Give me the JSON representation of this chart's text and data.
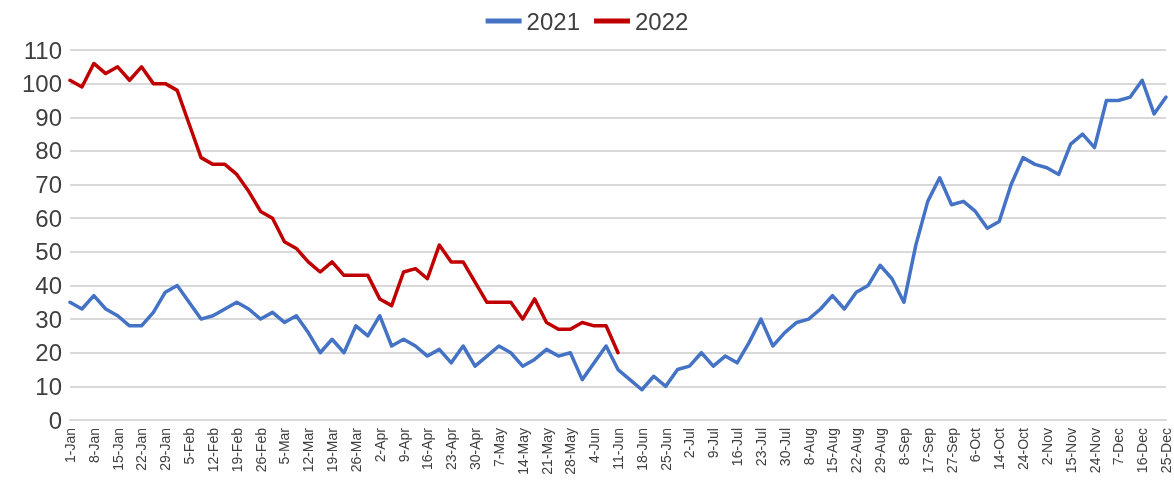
{
  "chart_data": {
    "type": "line",
    "categories": [
      "1-Jan",
      null,
      "8-Jan",
      null,
      "15-Jan",
      null,
      "22-Jan",
      null,
      "29-Jan",
      null,
      "5-Feb",
      null,
      "12-Feb",
      null,
      "19-Feb",
      null,
      "26-Feb",
      null,
      "5-Mar",
      null,
      "12-Mar",
      null,
      "19-Mar",
      null,
      "26-Mar",
      null,
      "2-Apr",
      null,
      "9-Apr",
      null,
      "16-Apr",
      null,
      "23-Apr",
      null,
      "30-Apr",
      null,
      "7-May",
      null,
      "14-May",
      null,
      "21-May",
      null,
      "28-May",
      null,
      "4-Jun",
      null,
      "11-Jun",
      null,
      "18-Jun",
      null,
      "25-Jun",
      null,
      "2-Jul",
      null,
      "9-Jul",
      null,
      "16-Jul",
      null,
      "23-Jul",
      null,
      "30-Jul",
      null,
      "8-Aug",
      null,
      "15-Aug",
      null,
      "22-Aug",
      null,
      "29-Aug",
      null,
      "8-Sep",
      null,
      "17-Sep",
      null,
      "27-Sep",
      null,
      "6-Oct",
      null,
      "14-Oct",
      null,
      "24-Oct",
      null,
      "2-Nov",
      null,
      "15-Nov",
      null,
      "24-Nov",
      null,
      "7-Dec",
      null,
      "16-Dec",
      null,
      "25-Dec"
    ],
    "series": [
      {
        "name": "2021",
        "color": "#4472c4",
        "values": [
          35,
          33,
          37,
          33,
          31,
          28,
          28,
          32,
          38,
          40,
          35,
          30,
          31,
          33,
          35,
          33,
          30,
          32,
          29,
          31,
          26,
          20,
          24,
          20,
          28,
          25,
          31,
          22,
          24,
          22,
          19,
          21,
          17,
          22,
          16,
          19,
          22,
          20,
          16,
          18,
          21,
          19,
          20,
          12,
          17,
          22,
          15,
          12,
          9,
          13,
          10,
          15,
          16,
          20,
          16,
          19,
          17,
          23,
          30,
          22,
          26,
          29,
          30,
          33,
          37,
          33,
          38,
          40,
          46,
          42,
          35,
          52,
          65,
          72,
          64,
          65,
          62,
          57,
          59,
          70,
          78,
          76,
          75,
          73,
          82,
          85,
          81,
          95,
          95,
          96,
          101,
          91,
          96
        ]
      },
      {
        "name": "2022",
        "color": "#c00000",
        "values": [
          101,
          99,
          106,
          103,
          105,
          101,
          105,
          100,
          100,
          98,
          88,
          78,
          76,
          76,
          73,
          68,
          62,
          60,
          53,
          51,
          47,
          44,
          47,
          43,
          43,
          43,
          36,
          34,
          44,
          45,
          42,
          52,
          47,
          47,
          41,
          35,
          35,
          35,
          30,
          36,
          29,
          27,
          27,
          29,
          28,
          28,
          20,
          null,
          null,
          null,
          null,
          null,
          null,
          null,
          null,
          null,
          null,
          null,
          null,
          null,
          null,
          null,
          null,
          null,
          null,
          null,
          null,
          null,
          null,
          null,
          null,
          null,
          null,
          null,
          null,
          null,
          null,
          null,
          null,
          null,
          null,
          null,
          null,
          null,
          null,
          null,
          null,
          null,
          null,
          null,
          null,
          null,
          null
        ]
      }
    ],
    "ylim": [
      0,
      110
    ],
    "yticks": [
      0,
      10,
      20,
      30,
      40,
      50,
      60,
      70,
      80,
      90,
      100,
      110
    ],
    "grid": "y",
    "legend": "top",
    "marker": "none",
    "line_style": "solid"
  }
}
